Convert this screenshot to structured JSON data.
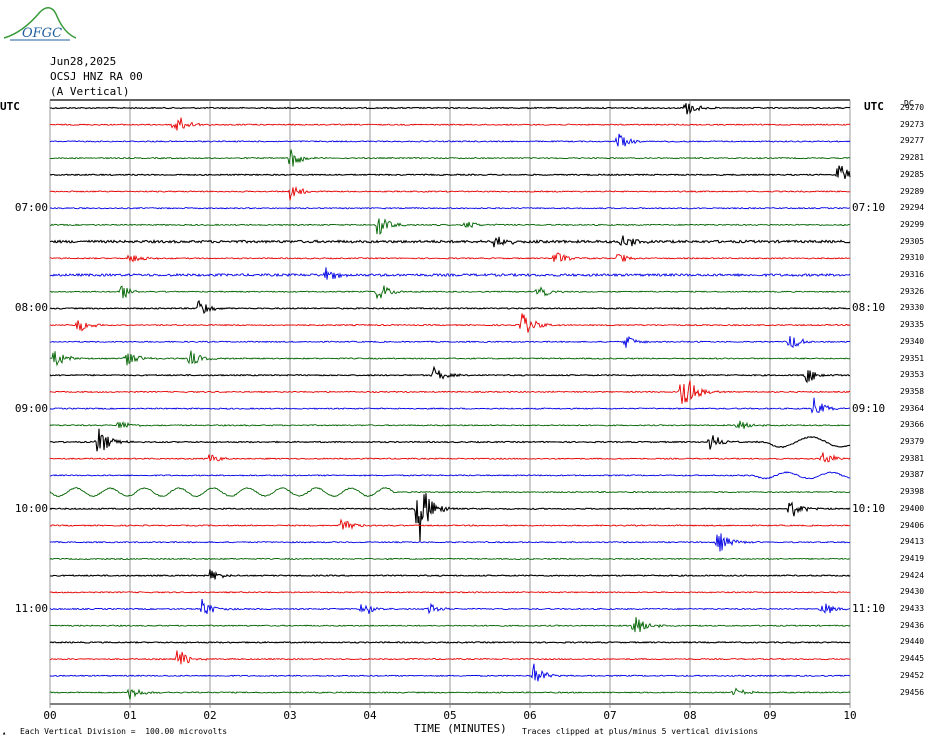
{
  "header": {
    "logo_text": "OFGC",
    "date": "Jun28,2025",
    "station": "OCSJ HNZ RA 00",
    "orientation": "(A Vertical)"
  },
  "utc_left": "UTC",
  "utc_right": "UTC",
  "colors": {
    "black": "#000000",
    "red": "#e60000",
    "blue": "#0000e6",
    "green": "#006400",
    "grid": "#808080",
    "logo": "#1f5fa0",
    "logo_hill": "#3a9a3a"
  },
  "chart_data": {
    "type": "line",
    "title": "",
    "xlabel": "TIME (MINUTES)",
    "ylabel": "",
    "xlim": [
      0,
      10
    ],
    "x_ticks": [
      "00",
      "01",
      "02",
      "03",
      "04",
      "05",
      "06",
      "07",
      "08",
      "09",
      "10"
    ],
    "trace_interval_minutes": 10,
    "grid": true,
    "left_time_labels": [
      {
        "trace": 6,
        "label": "07:00"
      },
      {
        "trace": 12,
        "label": "08:00"
      },
      {
        "trace": 18,
        "label": "09:00"
      },
      {
        "trace": 24,
        "label": "10:00"
      },
      {
        "trace": 30,
        "label": "11:00"
      }
    ],
    "right_time_labels": [
      {
        "trace": 6,
        "label": "07:10"
      },
      {
        "trace": 12,
        "label": "08:10"
      },
      {
        "trace": 18,
        "label": "09:10"
      },
      {
        "trace": 24,
        "label": "10:10"
      },
      {
        "trace": 30,
        "label": "11:10"
      }
    ],
    "right_top_label": "DC",
    "trace_colors": [
      "black",
      "red",
      "blue",
      "green"
    ],
    "trace_counts": [
      "29270",
      "29273",
      "29277",
      "29281",
      "29285",
      "29289",
      "29294",
      "29299",
      "29305",
      "29310",
      "29316",
      "29326",
      "29330",
      "29335",
      "29340",
      "29351",
      "29353",
      "29358",
      "29364",
      "29366",
      "29379",
      "29381",
      "29387",
      "29398",
      "29400",
      "29406",
      "29413",
      "29419",
      "29424",
      "29430",
      "29433",
      "29436",
      "29440",
      "29445",
      "29452",
      "29456"
    ],
    "events": [
      {
        "trace": 0,
        "minute": 7.95,
        "amp": 8
      },
      {
        "trace": 1,
        "minute": 1.55,
        "amp": 14
      },
      {
        "trace": 2,
        "minute": 7.1,
        "amp": 9
      },
      {
        "trace": 3,
        "minute": 3.0,
        "amp": 12
      },
      {
        "trace": 4,
        "minute": 9.85,
        "amp": 13
      },
      {
        "trace": 5,
        "minute": 3.0,
        "amp": 9
      },
      {
        "trace": 7,
        "minute": 4.1,
        "amp": 13
      },
      {
        "trace": 7,
        "minute": 5.2,
        "amp": 5
      },
      {
        "trace": 8,
        "minute": 5.55,
        "amp": 10
      },
      {
        "trace": 8,
        "minute": 7.15,
        "amp": 11
      },
      {
        "trace": 9,
        "minute": 1.0,
        "amp": 8
      },
      {
        "trace": 9,
        "minute": 6.3,
        "amp": 9
      },
      {
        "trace": 9,
        "minute": 7.1,
        "amp": 7
      },
      {
        "trace": 10,
        "minute": 3.45,
        "amp": 8
      },
      {
        "trace": 11,
        "minute": 0.9,
        "amp": 9
      },
      {
        "trace": 11,
        "minute": 4.1,
        "amp": 11
      },
      {
        "trace": 11,
        "minute": 6.1,
        "amp": 10
      },
      {
        "trace": 12,
        "minute": 1.85,
        "amp": 10
      },
      {
        "trace": 13,
        "minute": 0.35,
        "amp": 8
      },
      {
        "trace": 13,
        "minute": 5.9,
        "amp": 14
      },
      {
        "trace": 14,
        "minute": 7.2,
        "amp": 7
      },
      {
        "trace": 14,
        "minute": 9.25,
        "amp": 9
      },
      {
        "trace": 15,
        "minute": 0.05,
        "amp": 11
      },
      {
        "trace": 15,
        "minute": 0.95,
        "amp": 9
      },
      {
        "trace": 15,
        "minute": 1.75,
        "amp": 8
      },
      {
        "trace": 16,
        "minute": 4.8,
        "amp": 9
      },
      {
        "trace": 16,
        "minute": 9.45,
        "amp": 9
      },
      {
        "trace": 17,
        "minute": 7.9,
        "amp": 30
      },
      {
        "trace": 18,
        "minute": 9.55,
        "amp": 11
      },
      {
        "trace": 19,
        "minute": 0.85,
        "amp": 6
      },
      {
        "trace": 19,
        "minute": 8.6,
        "amp": 8
      },
      {
        "trace": 20,
        "minute": 0.6,
        "amp": 16
      },
      {
        "trace": 20,
        "minute": 8.25,
        "amp": 10
      },
      {
        "trace": 21,
        "minute": 2.0,
        "amp": 6
      },
      {
        "trace": 21,
        "minute": 9.65,
        "amp": 9
      },
      {
        "trace": 24,
        "minute": 4.6,
        "amp": 40
      },
      {
        "trace": 24,
        "minute": 9.25,
        "amp": 11
      },
      {
        "trace": 25,
        "minute": 3.65,
        "amp": 10
      },
      {
        "trace": 26,
        "minute": 8.35,
        "amp": 12
      },
      {
        "trace": 28,
        "minute": 2.0,
        "amp": 6
      },
      {
        "trace": 30,
        "minute": 1.9,
        "amp": 10
      },
      {
        "trace": 30,
        "minute": 3.9,
        "amp": 9
      },
      {
        "trace": 30,
        "minute": 4.75,
        "amp": 5
      },
      {
        "trace": 30,
        "minute": 9.65,
        "amp": 9
      },
      {
        "trace": 31,
        "minute": 7.3,
        "amp": 16
      },
      {
        "trace": 33,
        "minute": 1.6,
        "amp": 12
      },
      {
        "trace": 34,
        "minute": 6.05,
        "amp": 12
      },
      {
        "trace": 35,
        "minute": 1.0,
        "amp": 8
      },
      {
        "trace": 35,
        "minute": 8.55,
        "amp": 5
      }
    ],
    "long_period_waves": [
      {
        "trace": 20,
        "from_minute": 8.95,
        "to_minute": 10,
        "amp": 5,
        "period_minutes": 0.75
      },
      {
        "trace": 22,
        "from_minute": 8.8,
        "to_minute": 10,
        "amp": 3,
        "period_minutes": 0.55
      },
      {
        "trace": 23,
        "from_minute": 0,
        "to_minute": 4.3,
        "amp": 4,
        "period_minutes": 0.43
      }
    ]
  },
  "footer": {
    "scale_text": "Each Vertical Division =  100.00 microvolts",
    "xlabel": "TIME (MINUTES)",
    "clip_text": "Traces clipped at plus/minus 5 vertical divisions"
  }
}
